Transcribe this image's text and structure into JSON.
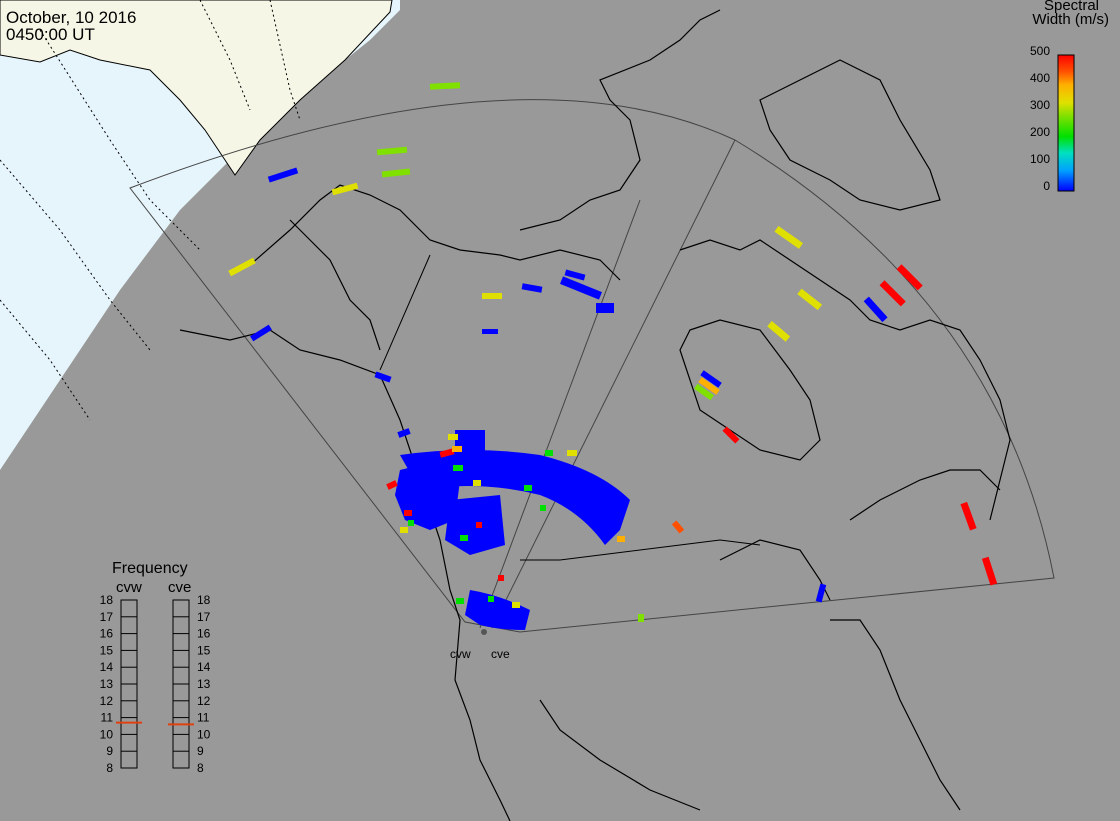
{
  "header": {
    "date": "October, 10 2016",
    "time": "0450:00 UT"
  },
  "colorbar": {
    "title_line1": "Spectral",
    "title_line2": "Width (m/s)",
    "ticks": [
      "500",
      "400",
      "300",
      "200",
      "100",
      "0"
    ],
    "min": 0,
    "max": 500,
    "colors": [
      "#0000ff",
      "#00a0ff",
      "#00e0c0",
      "#00e000",
      "#80e000",
      "#e0e000",
      "#ffb000",
      "#ff5000",
      "#ff0000"
    ]
  },
  "frequency": {
    "title": "Frequency",
    "radars": [
      "cvw",
      "cve"
    ],
    "ticks": [
      "18",
      "17",
      "16",
      "15",
      "14",
      "13",
      "12",
      "11",
      "10",
      "9",
      "8"
    ],
    "values_mhz": {
      "cvw": 10.7,
      "cve": 10.6
    },
    "range": [
      8,
      18
    ]
  },
  "radars": [
    {
      "name": "cvw"
    },
    {
      "name": "cve"
    }
  ],
  "colors": {
    "ocean_or_night": "#999999",
    "land_day": "#f6f6e6",
    "ocean_day": "#e6f5fc"
  }
}
